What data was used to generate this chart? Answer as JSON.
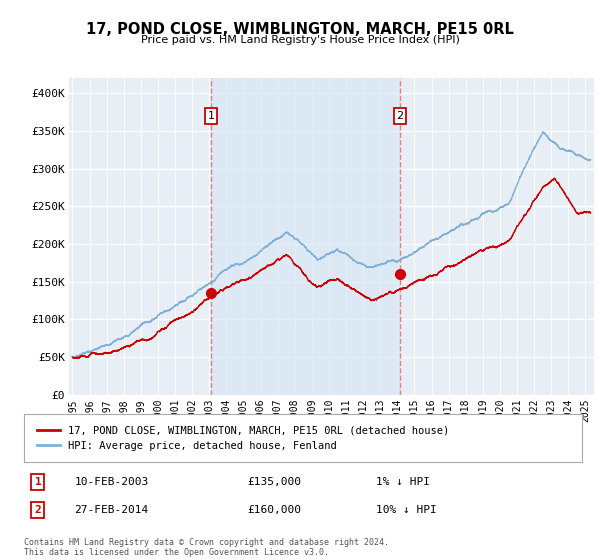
{
  "title": "17, POND CLOSE, WIMBLINGTON, MARCH, PE15 0RL",
  "subtitle": "Price paid vs. HM Land Registry's House Price Index (HPI)",
  "ylabel_ticks": [
    "£0",
    "£50K",
    "£100K",
    "£150K",
    "£200K",
    "£250K",
    "£300K",
    "£350K",
    "£400K"
  ],
  "ytick_values": [
    0,
    50000,
    100000,
    150000,
    200000,
    250000,
    300000,
    350000,
    400000
  ],
  "ylim": [
    0,
    420000
  ],
  "xlim_start": 1994.8,
  "xlim_end": 2025.5,
  "xtick_years": [
    1995,
    1996,
    1997,
    1998,
    1999,
    2000,
    2001,
    2002,
    2003,
    2004,
    2005,
    2006,
    2007,
    2008,
    2009,
    2010,
    2011,
    2012,
    2013,
    2014,
    2015,
    2016,
    2017,
    2018,
    2019,
    2020,
    2021,
    2022,
    2023,
    2024,
    2025
  ],
  "line1_color": "#cc0000",
  "line2_color": "#7fb0d8",
  "vline_color": "#e08080",
  "shade_color": "#d8e8f4",
  "marker1_date": 2003.1,
  "marker1_price": 135000,
  "marker2_date": 2014.15,
  "marker2_price": 160000,
  "legend_label1": "17, POND CLOSE, WIMBLINGTON, MARCH, PE15 0RL (detached house)",
  "legend_label2": "HPI: Average price, detached house, Fenland",
  "table_row1": [
    "1",
    "10-FEB-2003",
    "£135,000",
    "1% ↓ HPI"
  ],
  "table_row2": [
    "2",
    "27-FEB-2014",
    "£160,000",
    "10% ↓ HPI"
  ],
  "footer": "Contains HM Land Registry data © Crown copyright and database right 2024.\nThis data is licensed under the Open Government Licence v3.0.",
  "bg_color": "#e8eef5",
  "grid_color": "#ffffff"
}
